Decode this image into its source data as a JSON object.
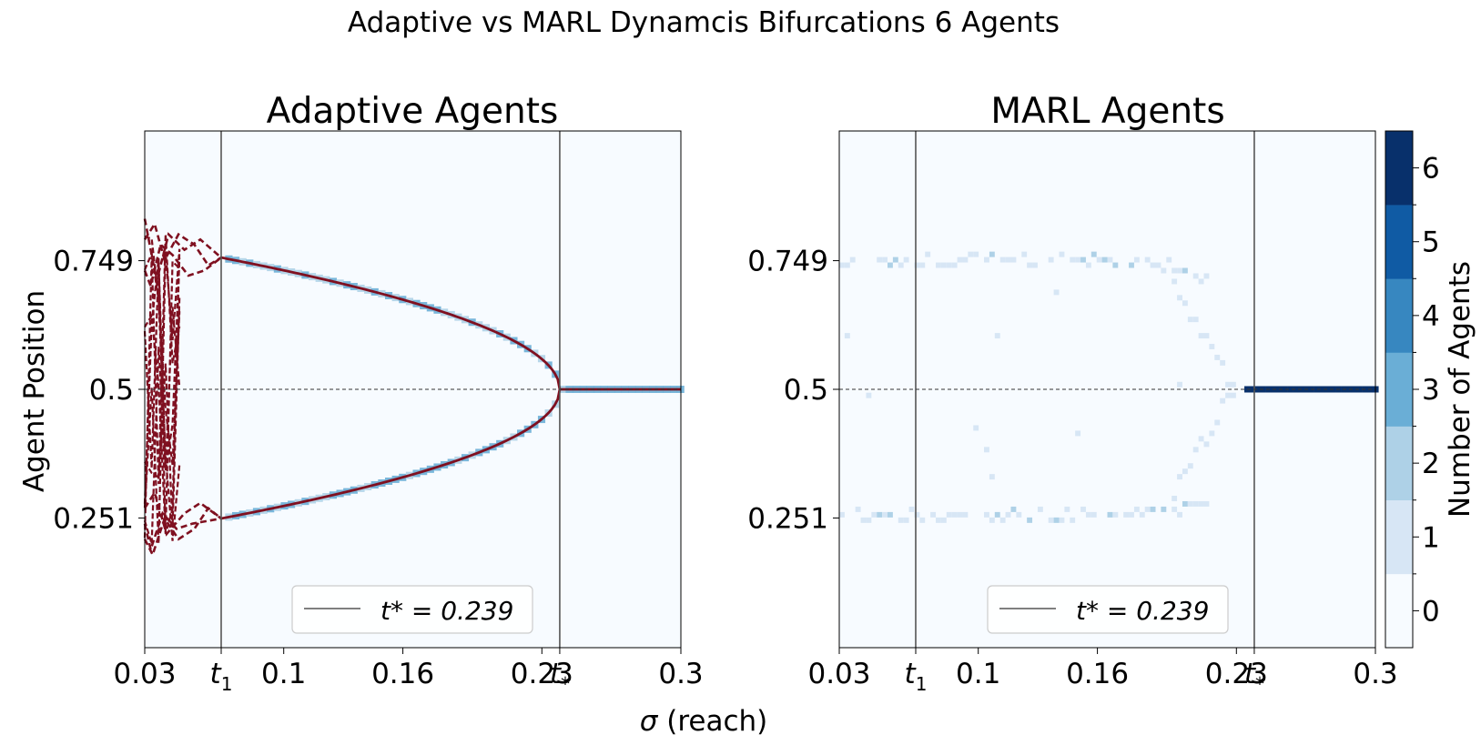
{
  "figure": {
    "suptitle": "Adaptive vs MARL Dynamcis Bifurcations  6 Agents",
    "shared_xlabel": "σ (reach)"
  },
  "colors": {
    "background": "#f7fbff",
    "bins": [
      "#f7fbff",
      "#d7e6f5",
      "#aed1e7",
      "#6aaed6",
      "#3787c0",
      "#105ba4",
      "#08306b"
    ],
    "adaptive_line": "#7f1020",
    "vline": "#555555",
    "hline": "#333333"
  },
  "colorbar": {
    "label": "Number of Agents",
    "ticks": [
      "0",
      "1",
      "2",
      "3",
      "4",
      "5",
      "6"
    ]
  },
  "chart_data": [
    {
      "type": "heatmap",
      "title": "Adaptive Agents",
      "xlabel": "",
      "ylabel": "Agent Position",
      "xlim": [
        0.03,
        0.3
      ],
      "ylim": [
        0.0,
        1.0
      ],
      "xticks": [
        {
          "value": 0.03,
          "label": "0.03"
        },
        {
          "value": 0.0685,
          "label": "t₁"
        },
        {
          "value": 0.1,
          "label": "0.1"
        },
        {
          "value": 0.16,
          "label": "0.16"
        },
        {
          "value": 0.23,
          "label": "0.23"
        },
        {
          "value": 0.239,
          "label": "t*"
        },
        {
          "value": 0.3,
          "label": "0.3"
        }
      ],
      "yticks": [
        {
          "value": 0.251,
          "label": "0.251"
        },
        {
          "value": 0.5,
          "label": "0.5"
        },
        {
          "value": 0.749,
          "label": "0.749"
        }
      ],
      "vlines": [
        0.0685,
        0.239
      ],
      "hline": 0.5,
      "legend": {
        "label": "t* = 0.239",
        "position": "lower-right"
      },
      "bifurcation": {
        "t1": 0.0685,
        "tstar": 0.239,
        "upper_start": 0.755,
        "lower_start": 0.25
      },
      "dashed_transients": [
        {
          "x": [
            0.03,
            0.035,
            0.04,
            0.047,
            0.055,
            0.062,
            0.0685
          ],
          "y": [
            0.79,
            0.82,
            0.75,
            0.8,
            0.78,
            0.74,
            0.755
          ]
        },
        {
          "x": [
            0.03,
            0.033,
            0.038,
            0.044,
            0.052,
            0.06,
            0.0685
          ],
          "y": [
            0.73,
            0.7,
            0.78,
            0.76,
            0.72,
            0.73,
            0.755
          ]
        },
        {
          "x": [
            0.03,
            0.036,
            0.042,
            0.05,
            0.058,
            0.0685
          ],
          "y": [
            0.83,
            0.71,
            0.8,
            0.77,
            0.79,
            0.755
          ]
        },
        {
          "x": [
            0.03,
            0.034,
            0.04,
            0.047,
            0.055,
            0.062,
            0.0685
          ],
          "y": [
            0.21,
            0.18,
            0.25,
            0.21,
            0.23,
            0.27,
            0.25
          ]
        },
        {
          "x": [
            0.03,
            0.035,
            0.041,
            0.05,
            0.058,
            0.0685
          ],
          "y": [
            0.27,
            0.3,
            0.22,
            0.26,
            0.28,
            0.25
          ]
        },
        {
          "x": [
            0.03,
            0.033,
            0.039,
            0.046,
            0.054,
            0.0685
          ],
          "y": [
            0.24,
            0.19,
            0.26,
            0.23,
            0.24,
            0.25
          ]
        }
      ]
    },
    {
      "type": "heatmap",
      "title": "MARL Agents",
      "xlabel": "",
      "ylabel": "",
      "xlim": [
        0.03,
        0.3
      ],
      "ylim": [
        0.0,
        1.0
      ],
      "xticks": [
        {
          "value": 0.03,
          "label": "0.03"
        },
        {
          "value": 0.0685,
          "label": "t₁"
        },
        {
          "value": 0.1,
          "label": "0.1"
        },
        {
          "value": 0.16,
          "label": "0.16"
        },
        {
          "value": 0.23,
          "label": "0.23"
        },
        {
          "value": 0.239,
          "label": "t*"
        },
        {
          "value": 0.3,
          "label": "0.3"
        }
      ],
      "yticks": [
        {
          "value": 0.251,
          "label": "0.251"
        },
        {
          "value": 0.5,
          "label": "0.5"
        },
        {
          "value": 0.749,
          "label": "0.749"
        }
      ],
      "vlines": [
        0.0685,
        0.239
      ],
      "hline": 0.5,
      "legend": {
        "label": "t* = 0.239",
        "position": "lower-right"
      },
      "marl": {
        "upper_y": 0.75,
        "lower_y": 0.255,
        "collapse_x": 0.23,
        "converged_from": 0.234
      }
    }
  ]
}
